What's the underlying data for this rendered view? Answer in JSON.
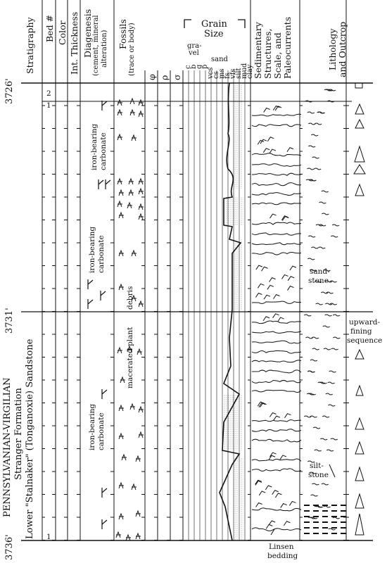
{
  "depths": {
    "top": "3726'",
    "middle": "3731'",
    "bottom": "3736'"
  },
  "headers": {
    "stratigraphy": "Stratigraphy",
    "bed": "Bed #",
    "color": "Color",
    "int_thickness": "Int. Thickness",
    "diagenesis": "Diagenesis",
    "diagenesis_sub1": "(cement, mineral",
    "diagenesis_sub2": "alteration)",
    "fossils": "Fossils",
    "fossils_sub": "(trace or body)",
    "phi": "φ",
    "rho": "ρ",
    "sigma": "σ",
    "grain_size_1": "Grain",
    "grain_size_2": "Size",
    "gravel": "gra-",
    "gravel2": "vel",
    "sand": "sand",
    "grain_cols": [
      "c",
      "b",
      "g",
      "p",
      "vcs",
      "cs",
      "ms",
      "fs",
      "vfs",
      "silt",
      "mud",
      "clay"
    ],
    "sed": "Sedimentary",
    "sed2": "Structures,",
    "sed3": "Scale, and",
    "sed4": "Paleocurrents",
    "litho": "Lithology",
    "litho2": "and Outcrop"
  },
  "beds": [
    "2",
    "1",
    "1"
  ],
  "stratigraphy_text": {
    "line1": "PENNSYLVANIAN-VIRGILIAN",
    "line2": "Stranger Formation",
    "line3": "Lower \"Stalnaker\" (Tonganoxie) Sandstone"
  },
  "diagenesis_labels": [
    "iron-bearing carbonate",
    "iron-bearing carbonate",
    "iron-bearing carbonate"
  ],
  "fossil_labels": {
    "debris": "debris",
    "macerated": "macerated plant"
  },
  "lithology_labels": {
    "sandstone1": "sand-",
    "sandstone2": "stone",
    "siltstone1": "silt-",
    "siltstone2": "stone"
  },
  "annotations": {
    "upward1": "upward-",
    "upward2": "fining",
    "upward3": "sequence",
    "linsen1": "Linsen",
    "linsen2": "bedding"
  },
  "colors": {
    "ink": "#111111",
    "stipple": "#bdbdbd"
  }
}
